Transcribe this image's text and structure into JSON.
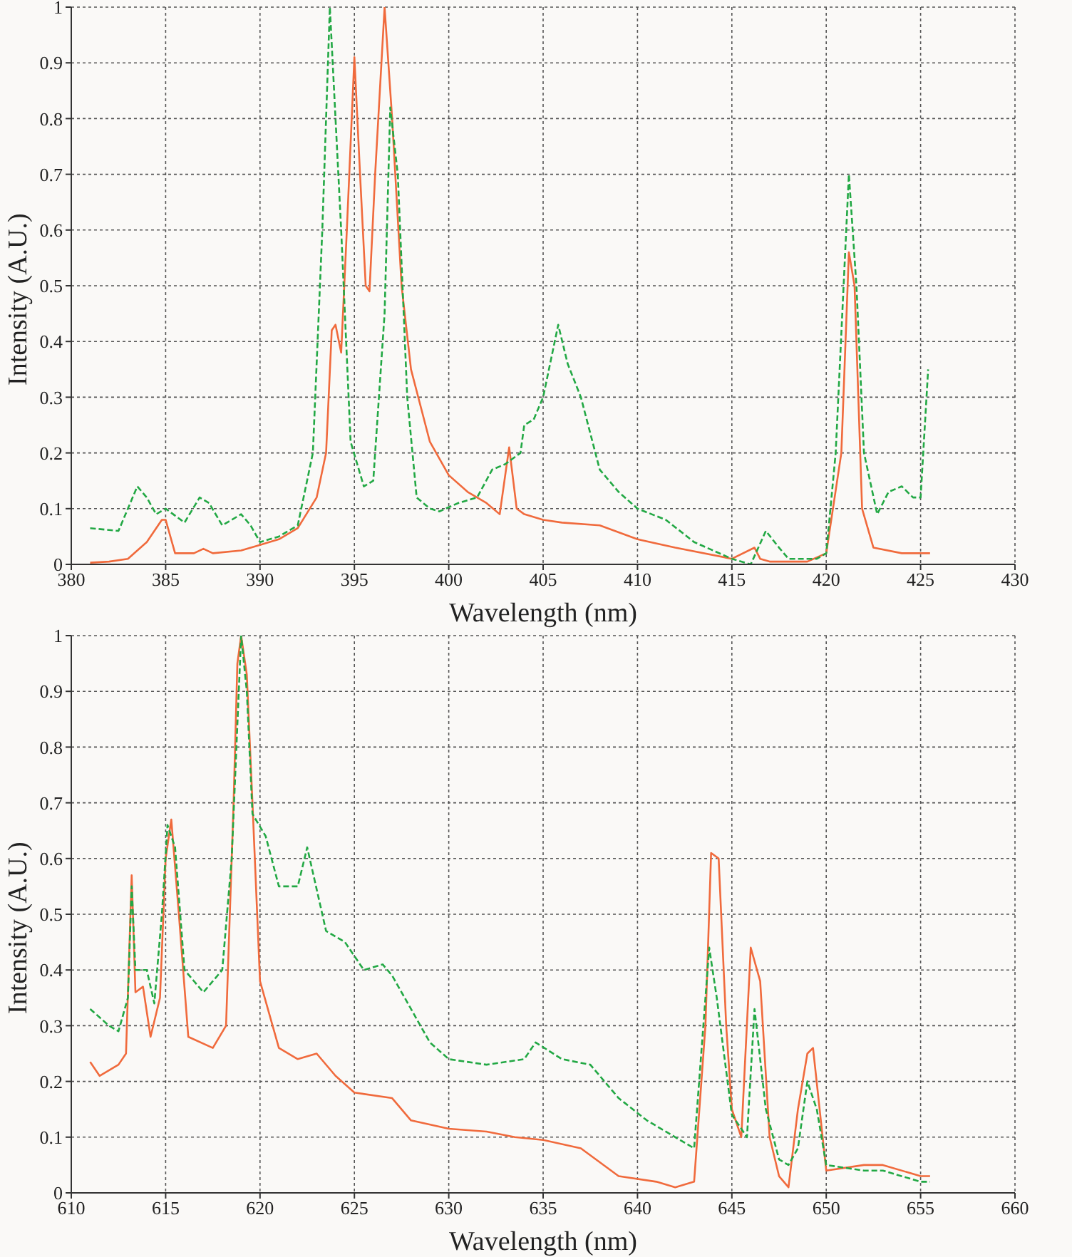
{
  "chart_data": [
    {
      "type": "line",
      "xlabel": "Wavelength (nm)",
      "ylabel": "Intensity (A.U.)",
      "xlim": [
        380,
        430
      ],
      "xticks": [
        380,
        385,
        390,
        395,
        400,
        405,
        410,
        415,
        420,
        425,
        430
      ],
      "ylim": [
        0,
        1
      ],
      "yticks": [
        0,
        0.1,
        0.2,
        0.3,
        0.4,
        0.5,
        0.6,
        0.7,
        0.8,
        0.9,
        1
      ],
      "grid": true,
      "series": [
        {
          "color": "#f06a3c",
          "line_style": "solid",
          "x": [
            381,
            382,
            383,
            384,
            384.8,
            385,
            385.5,
            386.5,
            387,
            387.5,
            389,
            390,
            391,
            392,
            393,
            393.5,
            393.8,
            394,
            394.3,
            394.6,
            395,
            395.3,
            395.6,
            395.8,
            396.1,
            396.6,
            397,
            397.5,
            398,
            399,
            400,
            401,
            402,
            402.7,
            403.2,
            403.6,
            404,
            405,
            406,
            408,
            410,
            412,
            415,
            416.2,
            416.5,
            417,
            419,
            420,
            420.8,
            421.2,
            421.5,
            421.9,
            422.5,
            424,
            425.5
          ],
          "values": [
            0.003,
            0.005,
            0.01,
            0.04,
            0.08,
            0.08,
            0.02,
            0.02,
            0.028,
            0.02,
            0.025,
            0.035,
            0.045,
            0.065,
            0.12,
            0.2,
            0.42,
            0.43,
            0.38,
            0.6,
            0.91,
            0.7,
            0.5,
            0.49,
            0.7,
            1.0,
            0.8,
            0.5,
            0.35,
            0.22,
            0.16,
            0.13,
            0.11,
            0.09,
            0.21,
            0.1,
            0.09,
            0.08,
            0.075,
            0.07,
            0.045,
            0.03,
            0.01,
            0.03,
            0.01,
            0.005,
            0.005,
            0.02,
            0.2,
            0.56,
            0.5,
            0.1,
            0.03,
            0.02,
            0.02
          ]
        },
        {
          "color": "#22a844",
          "line_style": "dashed",
          "x": [
            381,
            382.5,
            383,
            383.5,
            384,
            384.5,
            385,
            386,
            386.8,
            387.3,
            388,
            389,
            389.5,
            390,
            391,
            392,
            392.8,
            393.3,
            393.7,
            394.3,
            394.8,
            395.5,
            396,
            396.6,
            396.9,
            397.3,
            397.8,
            398.3,
            399,
            399.5,
            400.5,
            401.5,
            402.3,
            403,
            403.8,
            404,
            404.5,
            405,
            405.8,
            406.3,
            407,
            408,
            409,
            410,
            411.5,
            413,
            415,
            416,
            416.8,
            417.5,
            418,
            419.5,
            420,
            420.5,
            421.2,
            421.6,
            422,
            422.7,
            423.3,
            424,
            424.6,
            425,
            425.4
          ],
          "values": [
            0.065,
            0.06,
            0.1,
            0.14,
            0.12,
            0.09,
            0.1,
            0.075,
            0.12,
            0.11,
            0.07,
            0.09,
            0.07,
            0.04,
            0.05,
            0.07,
            0.2,
            0.6,
            1.0,
            0.6,
            0.22,
            0.14,
            0.15,
            0.45,
            0.82,
            0.7,
            0.3,
            0.12,
            0.1,
            0.095,
            0.11,
            0.12,
            0.17,
            0.18,
            0.2,
            0.25,
            0.26,
            0.3,
            0.43,
            0.36,
            0.3,
            0.17,
            0.13,
            0.1,
            0.08,
            0.04,
            0.01,
            0.0,
            0.06,
            0.03,
            0.01,
            0.01,
            0.02,
            0.2,
            0.7,
            0.5,
            0.2,
            0.09,
            0.13,
            0.14,
            0.12,
            0.12,
            0.35
          ]
        }
      ]
    },
    {
      "type": "line",
      "xlabel": "Wavelength (nm)",
      "ylabel": "Intensity (A.U.)",
      "xlim": [
        610,
        660
      ],
      "xticks": [
        610,
        615,
        620,
        625,
        630,
        635,
        640,
        645,
        650,
        655,
        660
      ],
      "ylim": [
        0,
        1
      ],
      "yticks": [
        0,
        0.1,
        0.2,
        0.3,
        0.4,
        0.5,
        0.6,
        0.7,
        0.8,
        0.9,
        1
      ],
      "grid": true,
      "series": [
        {
          "color": "#f06a3c",
          "line_style": "solid",
          "x": [
            611,
            611.5,
            612.5,
            612.9,
            613.2,
            613.4,
            613.8,
            614.2,
            614.7,
            615,
            615.3,
            615.7,
            616.2,
            617.5,
            618.2,
            618.6,
            618.8,
            619,
            619.3,
            619.6,
            620,
            621,
            622,
            623,
            624,
            625,
            627,
            628,
            630,
            632,
            633.5,
            635,
            637,
            639,
            641,
            642,
            643,
            643.6,
            643.9,
            644.3,
            644.7,
            645,
            645.5,
            646,
            646.5,
            647,
            647.5,
            648,
            648.5,
            649,
            649.3,
            650,
            652,
            653,
            655,
            655.5
          ],
          "values": [
            0.235,
            0.21,
            0.23,
            0.25,
            0.57,
            0.36,
            0.37,
            0.28,
            0.35,
            0.6,
            0.67,
            0.5,
            0.28,
            0.26,
            0.3,
            0.7,
            0.95,
            1.0,
            0.93,
            0.7,
            0.38,
            0.26,
            0.24,
            0.25,
            0.21,
            0.18,
            0.17,
            0.13,
            0.115,
            0.11,
            0.1,
            0.095,
            0.08,
            0.03,
            0.02,
            0.01,
            0.02,
            0.3,
            0.61,
            0.6,
            0.3,
            0.15,
            0.1,
            0.44,
            0.38,
            0.1,
            0.03,
            0.01,
            0.15,
            0.25,
            0.26,
            0.04,
            0.05,
            0.05,
            0.03,
            0.03
          ]
        },
        {
          "color": "#22a844",
          "line_style": "dashed",
          "x": [
            611,
            612,
            612.5,
            613,
            613.2,
            613.4,
            614,
            614.4,
            614.8,
            615.1,
            615.5,
            616,
            617,
            618,
            618.5,
            619,
            619.3,
            619.6,
            620.3,
            621,
            622,
            622.5,
            623.5,
            624.5,
            625.5,
            626.5,
            627,
            628,
            629,
            630,
            632,
            634,
            634.6,
            636,
            637.5,
            639,
            640.5,
            642,
            643,
            643.8,
            644.2,
            645,
            645.8,
            646.2,
            646.8,
            647.5,
            648,
            648.5,
            649,
            649.5,
            650,
            652,
            653,
            655,
            655.5
          ],
          "values": [
            0.33,
            0.3,
            0.29,
            0.35,
            0.55,
            0.4,
            0.4,
            0.34,
            0.5,
            0.66,
            0.62,
            0.4,
            0.36,
            0.4,
            0.6,
            1.0,
            0.9,
            0.68,
            0.64,
            0.55,
            0.55,
            0.62,
            0.47,
            0.45,
            0.4,
            0.41,
            0.39,
            0.33,
            0.27,
            0.24,
            0.23,
            0.24,
            0.27,
            0.24,
            0.23,
            0.17,
            0.13,
            0.1,
            0.08,
            0.44,
            0.35,
            0.14,
            0.1,
            0.33,
            0.15,
            0.06,
            0.05,
            0.08,
            0.2,
            0.15,
            0.05,
            0.04,
            0.04,
            0.02,
            0.02
          ]
        }
      ]
    }
  ]
}
